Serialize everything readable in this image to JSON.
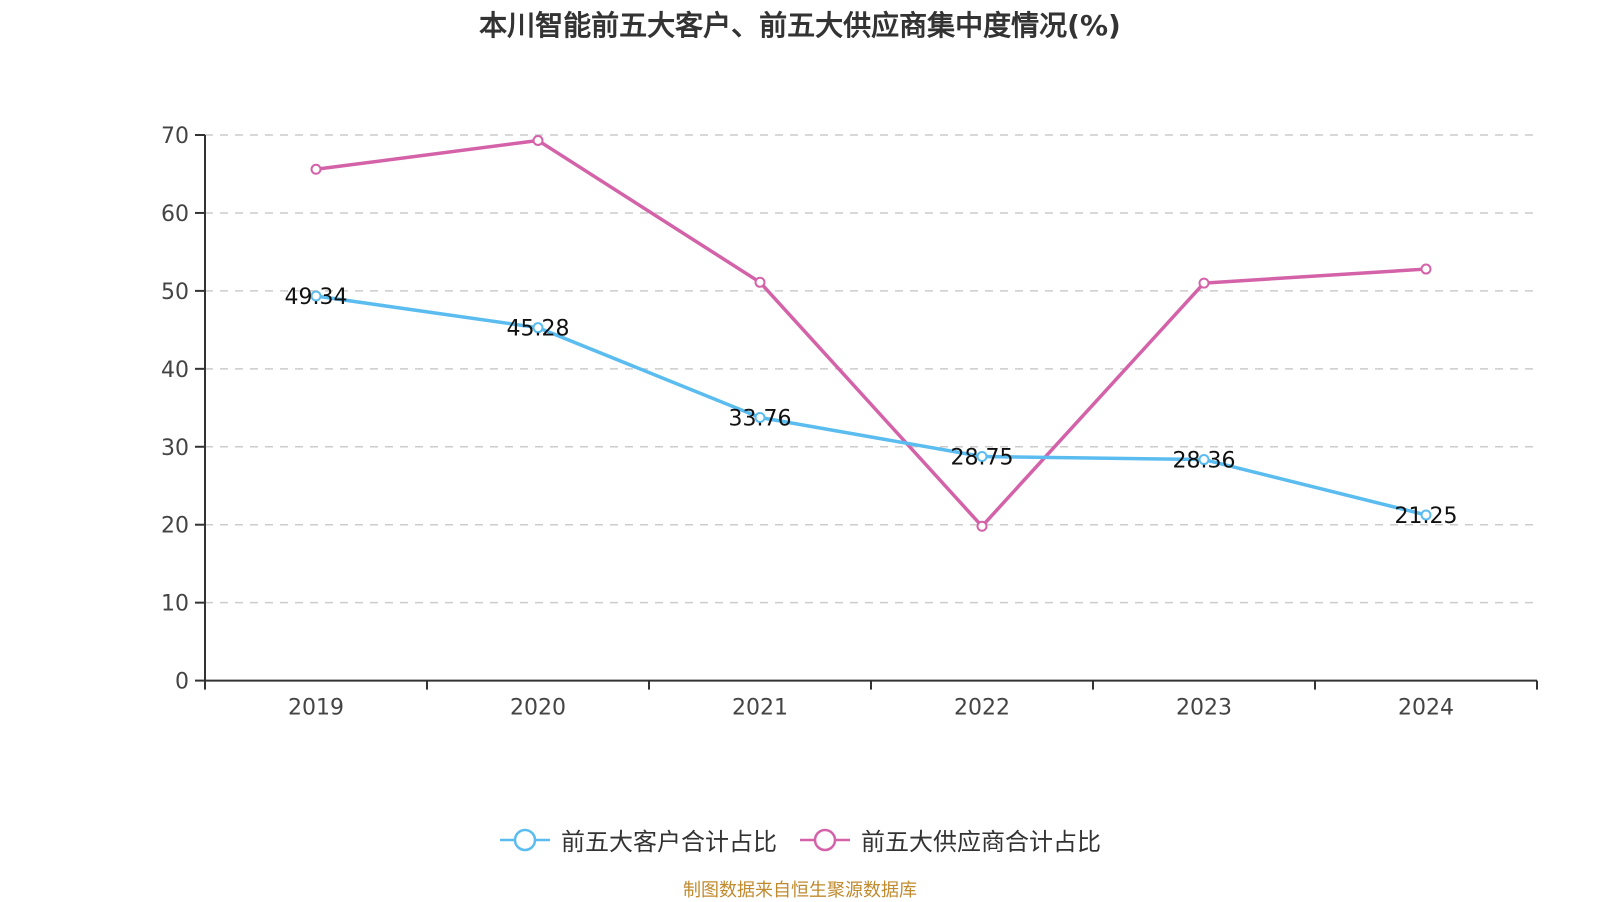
{
  "chart_data": {
    "type": "line",
    "title": "本川智能前五大客户、前五大供应商集中度情况(%)",
    "xlabel": "",
    "ylabel": "",
    "categories": [
      "2019",
      "2020",
      "2021",
      "2022",
      "2023",
      "2024"
    ],
    "ylim": [
      0,
      70
    ],
    "yticks": [
      0,
      10,
      20,
      30,
      40,
      50,
      60,
      70
    ],
    "grid": true,
    "legend_position": "bottom",
    "series": [
      {
        "name": "前五大客户合计占比",
        "color": "#5bbcf0",
        "values": [
          49.34,
          45.28,
          33.76,
          28.75,
          28.36,
          21.25
        ],
        "show_labels": true
      },
      {
        "name": "前五大供应商合计占比",
        "color": "#d462a8",
        "values": [
          65.6,
          69.3,
          51.1,
          19.8,
          51.0,
          52.8
        ],
        "show_labels": false
      }
    ],
    "source": "制图数据来自恒生聚源数据库"
  }
}
